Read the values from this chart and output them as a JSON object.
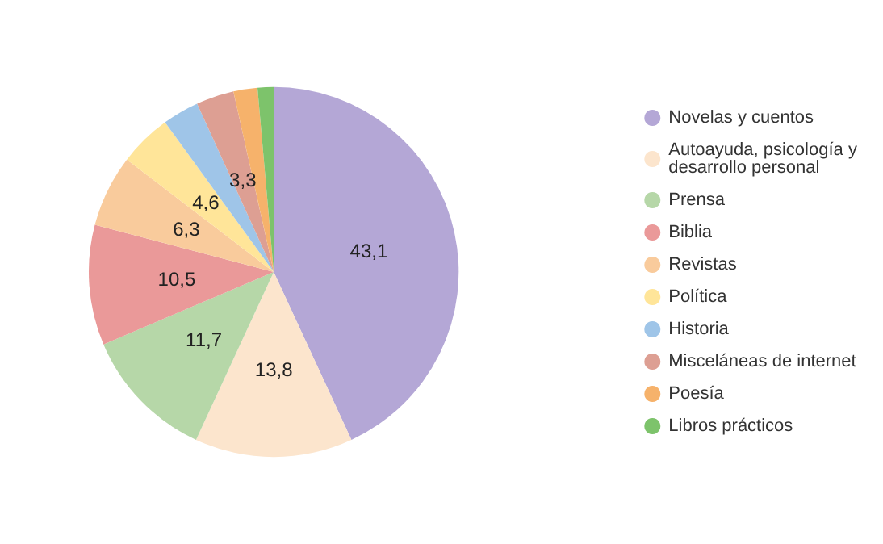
{
  "chart_data": {
    "type": "pie",
    "categories": [
      "Novelas y cuentos",
      "Autoayuda, psicología y desarrollo personal",
      "Prensa",
      "Biblia",
      "Revistas",
      "Política",
      "Historia",
      "Misceláneas de internet",
      "Poesía",
      "Libros prácticos"
    ],
    "values": [
      43.1,
      13.8,
      11.7,
      10.5,
      6.3,
      4.6,
      3.2,
      3.3,
      2.1,
      1.4
    ],
    "value_labels": [
      "43,1",
      "13,8",
      "11,7",
      "10,5",
      "6,3",
      "4,6",
      null,
      "3,3",
      null,
      null
    ],
    "colors": [
      "#b4a7d6",
      "#fce5cd",
      "#b6d7a8",
      "#ea9999",
      "#f9cb9c",
      "#ffe599",
      "#9fc5e8",
      "#dd9f93",
      "#f6b26b",
      "#7dc36b"
    ],
    "legend": "right"
  }
}
